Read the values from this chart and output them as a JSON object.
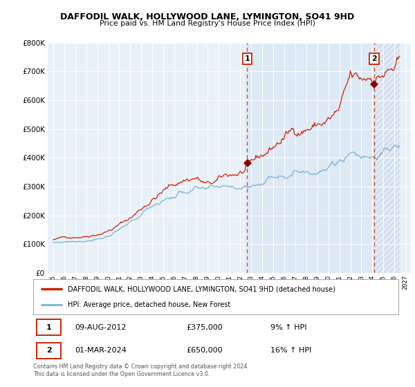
{
  "title": "DAFFODIL WALK, HOLLYWOOD LANE, LYMINGTON, SO41 9HD",
  "subtitle": "Price paid vs. HM Land Registry's House Price Index (HPI)",
  "red_label": "DAFFODIL WALK, HOLLYWOOD LANE, LYMINGTON, SO41 9HD (detached house)",
  "blue_label": "HPI: Average price, detached house, New Forest",
  "point1_date": "09-AUG-2012",
  "point1_price": "£375,000",
  "point1_hpi": "9% ↑ HPI",
  "point1_year": 2012.625,
  "point1_val": 375000,
  "point2_date": "01-MAR-2024",
  "point2_price": "£650,000",
  "point2_hpi": "16% ↑ HPI",
  "point2_year": 2024.167,
  "point2_val": 650000,
  "footer": "Contains HM Land Registry data © Crown copyright and database right 2024.\nThis data is licensed under the Open Government Licence v3.0.",
  "ylim": [
    0,
    800000
  ],
  "xlim_left": 1994.5,
  "xlim_right": 2027.5,
  "background_color": "#ffffff",
  "plot_bg_color": "#e8f0f8",
  "grid_color": "#ffffff",
  "red_color": "#cc2200",
  "blue_color": "#7ab0d4",
  "shade_color": "#dce8f5",
  "hatch_color": "#c8d8e8"
}
